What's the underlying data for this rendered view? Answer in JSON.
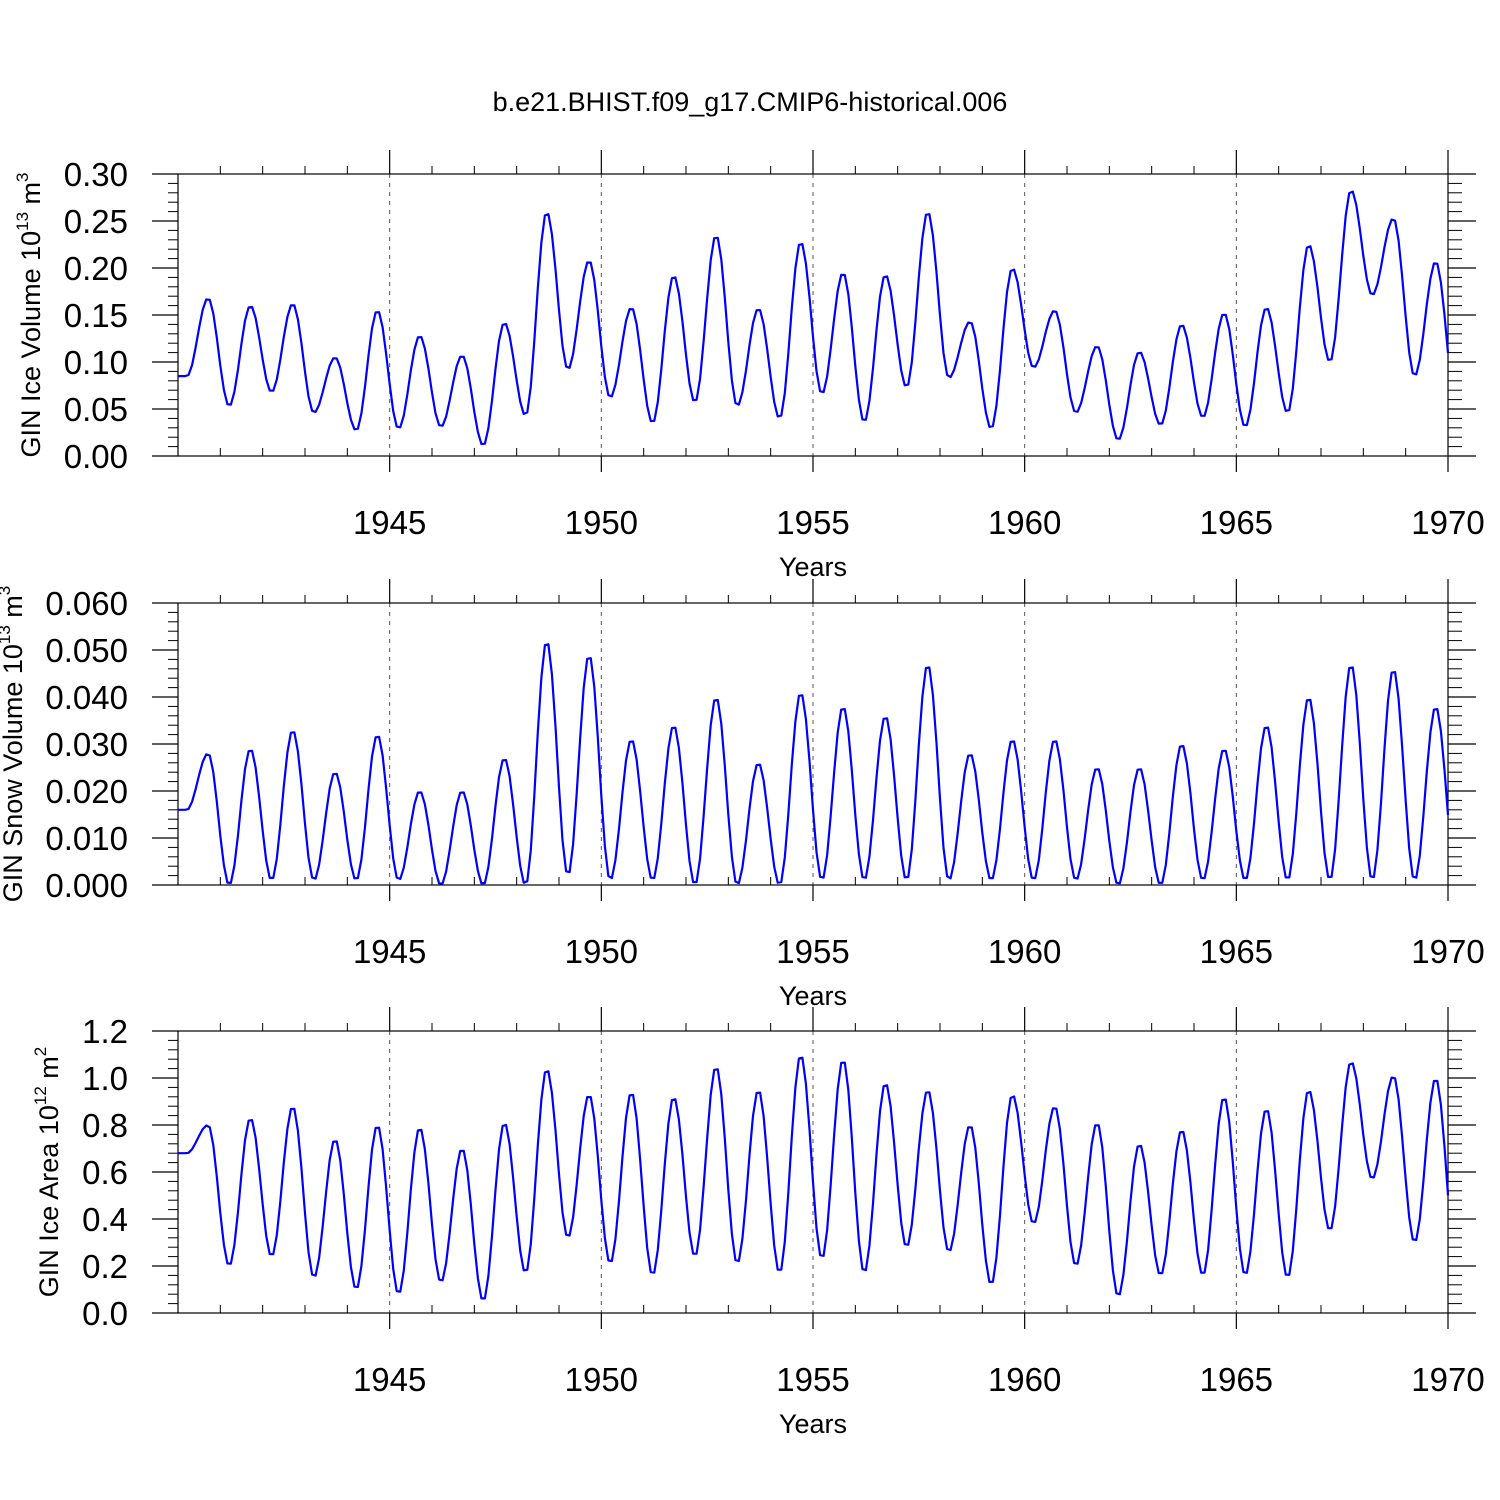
{
  "title": "b.e21.BHIST.f09_g17.CMIP6-historical.006",
  "colors": {
    "line": "#0000ff",
    "axis": "#000000",
    "grid": "#555555",
    "background": "#ffffff"
  },
  "chart_data": [
    {
      "type": "line",
      "name": "ice-volume",
      "title": "b.e21.BHIST.f09_g17.CMIP6-historical.006",
      "ylabel": {
        "base": "GIN Ice Volume 10",
        "exponent": "13",
        "unit": " m",
        "unit_exponent": "3"
      },
      "xlabel": "Years",
      "xlim": [
        1940,
        1970
      ],
      "ylim": [
        0,
        0.3
      ],
      "x_ticks": [
        1945,
        1950,
        1955,
        1960,
        1965,
        1970
      ],
      "x_tick_labels": [
        "1945",
        "1950",
        "1955",
        "1960",
        "1965",
        "1970"
      ],
      "y_ticks": [
        0,
        0.05,
        0.1,
        0.15,
        0.2,
        0.25,
        0.3
      ],
      "y_tick_labels": [
        "0.00",
        "0.05",
        "0.10",
        "0.15",
        "0.20",
        "0.25",
        "0.30"
      ],
      "grid": "dashed vertical at major x ticks",
      "series": [
        {
          "name": "GIN Ice Volume",
          "peaks": [
            0.168,
            0.16,
            0.162,
            0.105,
            0.155,
            0.128,
            0.107,
            0.142,
            0.26,
            0.208,
            0.158,
            0.192,
            0.235,
            0.157,
            0.228,
            0.195,
            0.193,
            0.26,
            0.143,
            0.2,
            0.155,
            0.117,
            0.111,
            0.14,
            0.152,
            0.158,
            0.225,
            0.283,
            0.253,
            0.207
          ],
          "troughs": [
            0.085,
            0.053,
            0.068,
            0.046,
            0.027,
            0.029,
            0.031,
            0.011,
            0.043,
            0.092,
            0.062,
            0.035,
            0.057,
            0.053,
            0.04,
            0.066,
            0.036,
            0.073,
            0.083,
            0.029,
            0.094,
            0.046,
            0.017,
            0.033,
            0.041,
            0.031,
            0.046,
            0.1,
            0.171,
            0.085,
            0.051,
            0.123
          ]
        }
      ]
    },
    {
      "type": "line",
      "name": "snow-volume",
      "ylabel": {
        "base": "GIN Snow Volume 10",
        "exponent": "13",
        "unit": " m",
        "unit_exponent": "3"
      },
      "xlabel": "Years",
      "xlim": [
        1940,
        1970
      ],
      "ylim": [
        0,
        0.06
      ],
      "x_ticks": [
        1945,
        1950,
        1955,
        1960,
        1965,
        1970
      ],
      "x_tick_labels": [
        "1945",
        "1950",
        "1955",
        "1960",
        "1965",
        "1970"
      ],
      "y_ticks": [
        0,
        0.01,
        0.02,
        0.03,
        0.04,
        0.05,
        0.06
      ],
      "y_tick_labels": [
        "0.000",
        "0.010",
        "0.020",
        "0.030",
        "0.040",
        "0.050",
        "0.060"
      ],
      "grid": "dashed vertical at major x ticks",
      "series": [
        {
          "name": "GIN Snow Volume",
          "peaks": [
            0.028,
            0.029,
            0.033,
            0.024,
            0.032,
            0.02,
            0.02,
            0.027,
            0.052,
            0.049,
            0.031,
            0.034,
            0.04,
            0.026,
            0.041,
            0.038,
            0.036,
            0.047,
            0.028,
            0.031,
            0.031,
            0.025,
            0.025,
            0.03,
            0.029,
            0.034,
            0.04,
            0.047,
            0.046,
            0.038
          ],
          "troughs": [
            0.016,
            0.0,
            0.001,
            0.001,
            0.001,
            0.001,
            0.0,
            0.0,
            0.0,
            0.002,
            0.001,
            0.001,
            0.0,
            0.0,
            0.0,
            0.001,
            0.001,
            0.001,
            0.001,
            0.001,
            0.001,
            0.001,
            0.0,
            0.0,
            0.001,
            0.001,
            0.001,
            0.001,
            0.001,
            0.001,
            0.001,
            0.02
          ]
        }
      ]
    },
    {
      "type": "line",
      "name": "ice-area",
      "ylabel": {
        "base": "GIN Ice Area 10",
        "exponent": "12",
        "unit": " m",
        "unit_exponent": "2"
      },
      "xlabel": "Years",
      "xlim": [
        1940,
        1970
      ],
      "ylim": [
        0,
        1.2
      ],
      "x_ticks": [
        1945,
        1950,
        1955,
        1960,
        1965,
        1970
      ],
      "x_tick_labels": [
        "1945",
        "1950",
        "1955",
        "1960",
        "1965",
        "1970"
      ],
      "y_ticks": [
        0,
        0.2,
        0.4,
        0.6,
        0.8,
        1.0,
        1.2
      ],
      "y_tick_labels": [
        "0.0",
        "0.2",
        "0.4",
        "0.6",
        "0.8",
        "1.0",
        "1.2"
      ],
      "grid": "dashed vertical at major x ticks",
      "series": [
        {
          "name": "GIN Ice Area",
          "peaks": [
            0.8,
            0.83,
            0.88,
            0.74,
            0.8,
            0.79,
            0.7,
            0.81,
            1.04,
            0.93,
            0.94,
            0.92,
            1.05,
            0.95,
            1.1,
            1.08,
            0.98,
            0.95,
            0.8,
            0.93,
            0.88,
            0.81,
            0.72,
            0.78,
            0.92,
            0.87,
            0.95,
            1.07,
            1.01,
            1.0
          ],
          "troughs": [
            0.68,
            0.2,
            0.24,
            0.15,
            0.1,
            0.08,
            0.13,
            0.05,
            0.17,
            0.32,
            0.21,
            0.16,
            0.24,
            0.21,
            0.17,
            0.23,
            0.17,
            0.28,
            0.26,
            0.12,
            0.38,
            0.2,
            0.07,
            0.16,
            0.16,
            0.16,
            0.15,
            0.35,
            0.57,
            0.3,
            0.2,
            0.67
          ]
        }
      ]
    }
  ]
}
